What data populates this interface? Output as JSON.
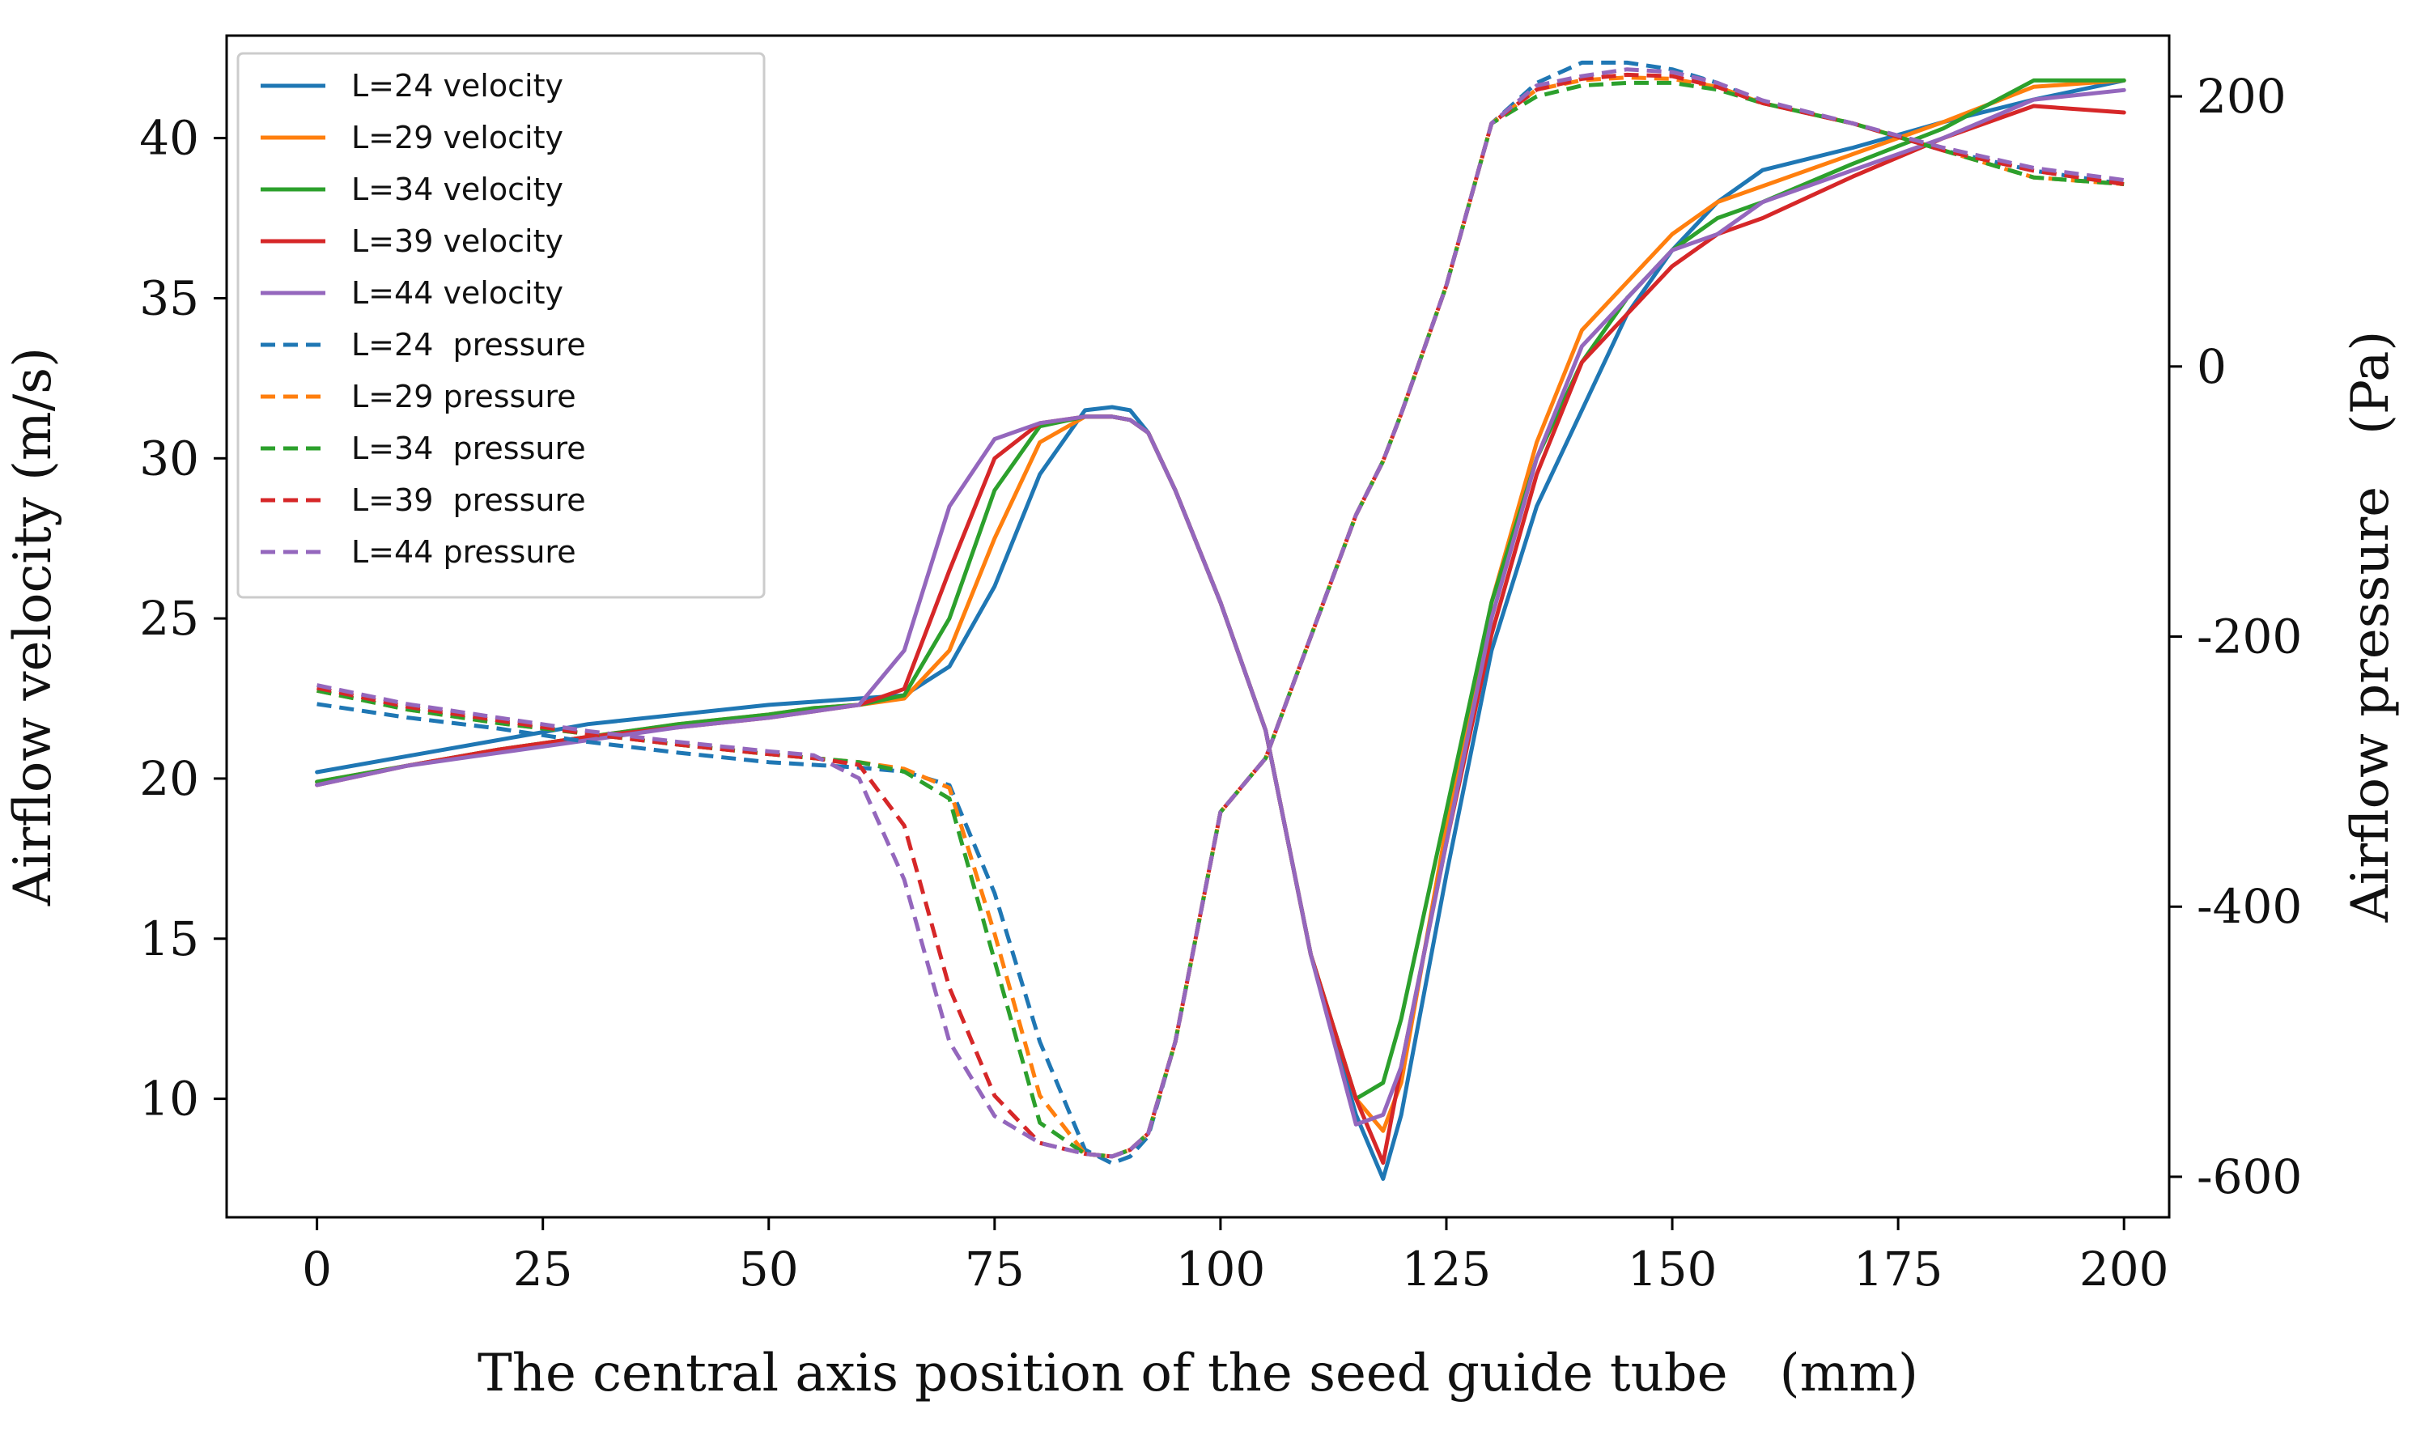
{
  "chart_data": {
    "type": "line",
    "title": "",
    "xlabel": "The central axis position of the seed guide tube　(mm)",
    "ylabel": "Airflow velocity (m/s)",
    "y2label": "Airflow pressure　(Pa)",
    "xlim": [
      -10,
      205
    ],
    "ylim": [
      6.3,
      43.2
    ],
    "y2lim": [
      -630,
      245
    ],
    "x_ticks": [
      "0",
      "25",
      "50",
      "75",
      "100",
      "125",
      "150",
      "175",
      "200"
    ],
    "y_ticks": [
      "10",
      "15",
      "20",
      "25",
      "30",
      "35",
      "40"
    ],
    "y2_ticks": [
      "-600",
      "-400",
      "-200",
      "0",
      "200"
    ],
    "grid": false,
    "legend_position": "top-left",
    "x": [
      0,
      10,
      20,
      30,
      40,
      50,
      55,
      60,
      65,
      70,
      75,
      80,
      85,
      88,
      90,
      92,
      95,
      100,
      105,
      110,
      115,
      118,
      120,
      125,
      130,
      135,
      140,
      145,
      150,
      155,
      160,
      170,
      180,
      190,
      200
    ],
    "series": [
      {
        "name": "L=24 velocity",
        "axis": "left",
        "style": "solid",
        "color": "#1f77b4",
        "values": [
          20.2,
          20.7,
          21.2,
          21.7,
          22.0,
          22.3,
          22.4,
          22.5,
          22.6,
          23.5,
          26.0,
          29.5,
          31.5,
          31.6,
          31.5,
          30.8,
          29.0,
          25.5,
          21.5,
          14.5,
          9.5,
          7.5,
          9.5,
          17.0,
          24.0,
          28.5,
          31.5,
          34.5,
          36.5,
          38.0,
          39.0,
          39.7,
          40.5,
          41.2,
          41.8
        ]
      },
      {
        "name": "L=29 velocity",
        "axis": "left",
        "style": "solid",
        "color": "#ff7f0e",
        "values": [
          19.9,
          20.4,
          20.9,
          21.3,
          21.7,
          22.0,
          22.2,
          22.3,
          22.5,
          24.0,
          27.5,
          30.5,
          31.3,
          31.3,
          31.2,
          30.8,
          29.0,
          25.5,
          21.5,
          14.5,
          10.0,
          9.0,
          10.5,
          18.5,
          25.5,
          30.5,
          34.0,
          35.5,
          37.0,
          38.0,
          38.5,
          39.5,
          40.5,
          41.6,
          41.8
        ]
      },
      {
        "name": "L=34 velocity",
        "axis": "left",
        "style": "solid",
        "color": "#2ca02c",
        "values": [
          19.9,
          20.4,
          20.9,
          21.3,
          21.7,
          22.0,
          22.2,
          22.3,
          22.6,
          25.0,
          29.0,
          31.0,
          31.3,
          31.3,
          31.2,
          30.8,
          29.0,
          25.5,
          21.5,
          14.5,
          10.0,
          10.5,
          12.5,
          19.0,
          25.5,
          30.0,
          33.0,
          35.0,
          36.5,
          37.5,
          38.0,
          39.2,
          40.3,
          41.8,
          41.8
        ]
      },
      {
        "name": "L=39 velocity",
        "axis": "left",
        "style": "solid",
        "color": "#d62728",
        "values": [
          19.8,
          20.4,
          20.9,
          21.3,
          21.6,
          21.9,
          22.1,
          22.3,
          22.8,
          26.5,
          30.0,
          31.1,
          31.3,
          31.3,
          31.2,
          30.8,
          29.0,
          25.5,
          21.5,
          14.5,
          10.0,
          8.0,
          11.0,
          18.0,
          24.5,
          29.5,
          33.0,
          34.5,
          36.0,
          37.0,
          37.5,
          38.8,
          40.0,
          41.0,
          40.8
        ]
      },
      {
        "name": "L=44 velocity",
        "axis": "left",
        "style": "solid",
        "color": "#9467bd",
        "values": [
          19.8,
          20.4,
          20.8,
          21.2,
          21.6,
          21.9,
          22.1,
          22.3,
          24.0,
          28.5,
          30.6,
          31.1,
          31.3,
          31.3,
          31.2,
          30.8,
          29.0,
          25.5,
          21.5,
          14.5,
          9.2,
          9.5,
          11.0,
          18.0,
          25.0,
          30.0,
          33.5,
          35.0,
          36.5,
          37.0,
          38.0,
          39.0,
          40.0,
          41.2,
          41.5
        ]
      },
      {
        "name": "L=24  pressure",
        "axis": "right",
        "style": "dashed",
        "color": "#1f77b4",
        "values": [
          -250,
          -260,
          -268,
          -278,
          -286,
          -293,
          -295,
          -297,
          -300,
          -310,
          -390,
          -500,
          -580,
          -590,
          -585,
          -570,
          -500,
          -330,
          -290,
          -200,
          -110,
          -70,
          -35,
          60,
          180,
          210,
          225,
          225,
          220,
          210,
          195,
          180,
          160,
          145,
          135
        ]
      },
      {
        "name": "L=29 pressure",
        "axis": "right",
        "style": "dashed",
        "color": "#ff7f0e",
        "values": [
          -240,
          -254,
          -264,
          -272,
          -280,
          -287,
          -290,
          -293,
          -298,
          -312,
          -420,
          -540,
          -583,
          -585,
          -580,
          -568,
          -500,
          -330,
          -290,
          -200,
          -110,
          -70,
          -35,
          60,
          180,
          205,
          212,
          214,
          213,
          207,
          195,
          180,
          160,
          140,
          135
        ]
      },
      {
        "name": "L=34  pressure",
        "axis": "right",
        "style": "dashed",
        "color": "#2ca02c",
        "values": [
          -240,
          -254,
          -264,
          -272,
          -280,
          -287,
          -290,
          -293,
          -300,
          -320,
          -440,
          -560,
          -583,
          -585,
          -580,
          -568,
          -500,
          -330,
          -290,
          -200,
          -110,
          -70,
          -35,
          60,
          180,
          200,
          208,
          210,
          210,
          205,
          195,
          180,
          160,
          140,
          135
        ]
      },
      {
        "name": "L=39  pressure",
        "axis": "right",
        "style": "dashed",
        "color": "#d62728",
        "values": [
          -238,
          -252,
          -262,
          -272,
          -280,
          -287,
          -290,
          -295,
          -340,
          -460,
          -540,
          -575,
          -583,
          -585,
          -580,
          -568,
          -500,
          -330,
          -290,
          -200,
          -110,
          -70,
          -35,
          60,
          180,
          205,
          213,
          216,
          215,
          207,
          195,
          180,
          160,
          145,
          135
        ]
      },
      {
        "name": "L=44 pressure",
        "axis": "right",
        "style": "dashed",
        "color": "#9467bd",
        "values": [
          -236,
          -250,
          -260,
          -270,
          -278,
          -285,
          -288,
          -305,
          -380,
          -500,
          -555,
          -575,
          -583,
          -585,
          -580,
          -568,
          -500,
          -330,
          -290,
          -200,
          -110,
          -70,
          -35,
          60,
          180,
          208,
          215,
          220,
          218,
          210,
          197,
          180,
          162,
          147,
          138
        ]
      }
    ]
  }
}
